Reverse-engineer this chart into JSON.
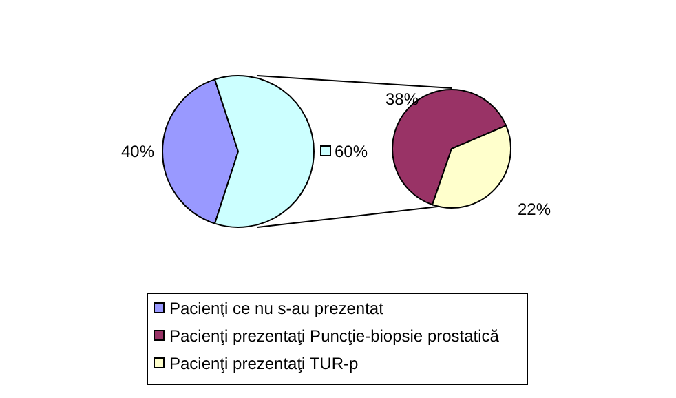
{
  "chart_data": [
    {
      "type": "pie",
      "categories": [
        "Pacienţi ce nu s-au prezentat",
        null
      ],
      "values": [
        40,
        60
      ],
      "colors": [
        "#9999ff",
        "#ccffff"
      ],
      "value_labels": [
        "40%",
        "60%"
      ],
      "legend": "bottom"
    },
    {
      "type": "pie",
      "categories": [
        "Pacienţi prezentaţi Puncţie-biopsie prostatică",
        "Pacienţi prezentaţi TUR-p"
      ],
      "values": [
        38,
        22
      ],
      "colors": [
        "#993366",
        "#ffffcc"
      ],
      "value_labels": [
        "38%",
        "22%"
      ],
      "legend": "bottom"
    }
  ]
}
